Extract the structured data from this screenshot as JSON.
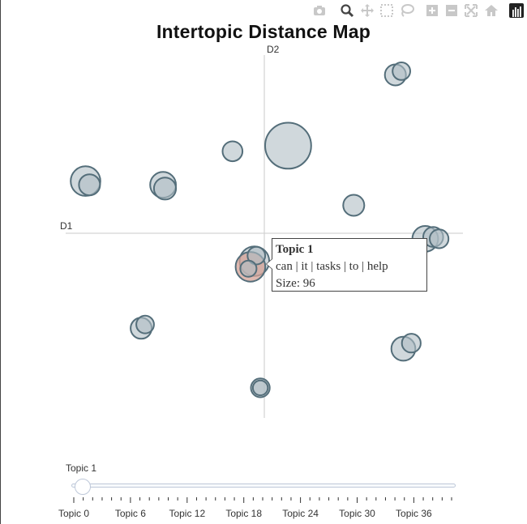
{
  "title": "Intertopic Distance Map",
  "modebar": {
    "buttons": [
      {
        "name": "camera-icon"
      },
      {
        "name": "zoom-icon"
      },
      {
        "name": "pan-icon"
      },
      {
        "name": "box-select-icon"
      },
      {
        "name": "lasso-select-icon"
      },
      {
        "name": "zoom-in-icon"
      },
      {
        "name": "zoom-out-icon"
      },
      {
        "name": "autoscale-icon"
      },
      {
        "name": "reset-axes-icon"
      },
      {
        "name": "plotly-logo-icon"
      }
    ]
  },
  "tooltip": {
    "title": "Topic 1",
    "words": "can | it | tasks | to | help",
    "size": "Size: 96"
  },
  "slider": {
    "current_label": "Topic 1",
    "steps": [
      "Topic 0",
      "Topic 6",
      "Topic 12",
      "Topic 18",
      "Topic 24",
      "Topic 30",
      "Topic 36"
    ]
  },
  "chart_data": {
    "type": "scatter",
    "xlabel": "D1",
    "ylabel": "D2",
    "xlim": [
      -10,
      10
    ],
    "ylim": [
      -10,
      10
    ],
    "grid": false,
    "colors": {
      "bubble_fill": "#b0bec5",
      "bubble_line": "#546e7a",
      "highlight_fill": "#d4a196",
      "axis_line": "#d3d3d3"
    },
    "points": [
      {
        "x": 6.6,
        "y": 8.5,
        "size": 20,
        "highlight": false
      },
      {
        "x": 6.9,
        "y": 8.7,
        "size": 14,
        "highlight": false
      },
      {
        "x": 1.2,
        "y": 4.7,
        "size": 96,
        "highlight": false
      },
      {
        "x": -1.6,
        "y": 4.4,
        "size": 18,
        "highlight": false
      },
      {
        "x": -9.0,
        "y": 2.8,
        "size": 40,
        "highlight": false
      },
      {
        "x": -8.8,
        "y": 2.6,
        "size": 20,
        "highlight": false
      },
      {
        "x": -5.1,
        "y": 2.6,
        "size": 30,
        "highlight": false
      },
      {
        "x": -5.0,
        "y": 2.4,
        "size": 22,
        "highlight": false
      },
      {
        "x": 4.5,
        "y": 1.5,
        "size": 20,
        "highlight": false
      },
      {
        "x": 8.1,
        "y": -0.3,
        "size": 30,
        "highlight": false
      },
      {
        "x": 8.5,
        "y": -0.2,
        "size": 18,
        "highlight": false
      },
      {
        "x": 8.8,
        "y": -0.3,
        "size": 16,
        "highlight": false
      },
      {
        "x": -0.5,
        "y": -1.5,
        "size": 40,
        "highlight": false
      },
      {
        "x": -0.7,
        "y": -1.8,
        "size": 40,
        "highlight": true
      },
      {
        "x": -0.4,
        "y": -1.2,
        "size": 14,
        "highlight": false
      },
      {
        "x": -0.8,
        "y": -1.9,
        "size": 12,
        "highlight": false
      },
      {
        "x": -6.2,
        "y": -5.1,
        "size": 20,
        "highlight": false
      },
      {
        "x": -6.0,
        "y": -4.9,
        "size": 14,
        "highlight": false
      },
      {
        "x": 7.0,
        "y": -6.2,
        "size": 26,
        "highlight": false
      },
      {
        "x": 7.4,
        "y": -5.9,
        "size": 16,
        "highlight": false
      },
      {
        "x": -0.2,
        "y": -8.3,
        "size": 16,
        "highlight": false
      },
      {
        "x": -0.2,
        "y": -8.3,
        "size": 10,
        "highlight": false
      }
    ]
  }
}
